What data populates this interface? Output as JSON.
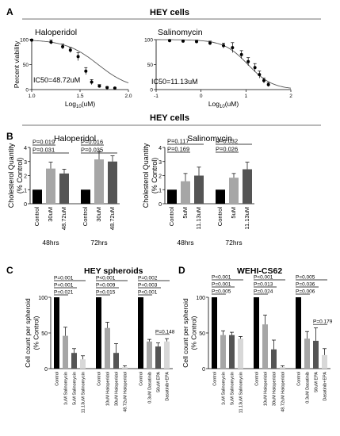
{
  "panel_labels": [
    "A",
    "B",
    "C",
    "D"
  ],
  "section_titles": {
    "a": "HEY cells",
    "b": "HEY cells"
  },
  "colors": {
    "black": "#000000",
    "gray": "#a6a6a6",
    "dark": "#545454",
    "light": "#d8d8d8"
  },
  "chart_data": [
    {
      "id": "A-haloperidol",
      "type": "scatter",
      "title": "Haloperidol",
      "ylabel": "Percent viability",
      "xlabel": "Log10(uM)",
      "xlabel_base": "Log",
      "xlabel_sub": "10",
      "xlabel_tail": "(uM)",
      "xlim": [
        1.0,
        2.0
      ],
      "ylim": [
        0,
        100
      ],
      "xticks": [
        "1.0",
        "1.5",
        "2.0"
      ],
      "yticks": [
        "0",
        "50",
        "100"
      ],
      "annotation": "IC50=48.72uM",
      "ic50": 48.72,
      "x": [
        1.0,
        1.2,
        1.32,
        1.4,
        1.48,
        1.56,
        1.62,
        1.7,
        1.78,
        1.86
      ],
      "y": [
        99,
        95,
        86,
        79,
        66,
        37,
        15,
        7,
        4,
        3
      ],
      "err": [
        2,
        4,
        5,
        5,
        8,
        7,
        5,
        3,
        2,
        1
      ]
    },
    {
      "id": "A-salinomycin",
      "type": "scatter",
      "title": "Salinomycin",
      "ylabel": "Percent viability",
      "xlabel": "Log10(uM)",
      "xlabel_base": "Log",
      "xlabel_sub": "10",
      "xlabel_tail": "(uM)",
      "xlim": [
        -1,
        2
      ],
      "ylim": [
        0,
        100
      ],
      "xticks": [
        "-1",
        "0",
        "1",
        "2"
      ],
      "yticks": [
        "0",
        "50",
        "100"
      ],
      "annotation": "IC50=11.13uM",
      "ic50": 11.13,
      "x": [
        -0.7,
        -0.4,
        -0.1,
        0.2,
        0.5,
        0.7,
        0.9,
        1.05,
        1.2,
        1.3,
        1.4,
        1.5
      ],
      "y": [
        98,
        97,
        96,
        93,
        88,
        84,
        70,
        56,
        44,
        30,
        18,
        10
      ],
      "err": [
        2,
        2,
        3,
        4,
        5,
        10,
        8,
        8,
        8,
        7,
        5,
        4
      ]
    },
    {
      "id": "B-haloperidol",
      "type": "bar",
      "title": "Haloperidol",
      "ylabel": "Cholesterol Quantity",
      "ylabel2": "(% Control)",
      "ylim": [
        0,
        4
      ],
      "yticks": [
        "0",
        "1",
        "2",
        "3",
        "4"
      ],
      "categories": [
        "Control",
        "30uM",
        "48.72uM",
        "Control",
        "30uM",
        "48.72uM"
      ],
      "values": [
        1.0,
        2.5,
        2.15,
        1.0,
        3.15,
        3.0
      ],
      "err": [
        0,
        0.45,
        0.3,
        0,
        0.55,
        0.4
      ],
      "bar_colors": [
        "#000000",
        "#a6a6a6",
        "#545454",
        "#000000",
        "#a6a6a6",
        "#545454"
      ],
      "groups": [
        "48hrs",
        "72hrs"
      ],
      "pvalues": [
        {
          "label": "P=0.019",
          "from": 0,
          "to": 1,
          "level": 1
        },
        {
          "label": "P=0.031",
          "from": 0,
          "to": 2,
          "level": 0
        },
        {
          "label": "P=0.016",
          "from": 3,
          "to": 4,
          "level": 1
        },
        {
          "label": "P=0.035",
          "from": 3,
          "to": 5,
          "level": 0
        }
      ]
    },
    {
      "id": "B-salinomycin",
      "type": "bar",
      "title": "Salinomycin",
      "ylabel": "Cholesterol Quantity",
      "ylabel2": "(% Control)",
      "ylim": [
        0,
        4
      ],
      "yticks": [
        "0",
        "1",
        "2",
        "3",
        "4"
      ],
      "categories": [
        "Control",
        "5uM",
        "11.13uM",
        "Control",
        "5uM",
        "11.13uM"
      ],
      "values": [
        1.0,
        1.6,
        2.0,
        1.0,
        1.85,
        2.45
      ],
      "err": [
        0,
        0.55,
        0.6,
        0,
        0.3,
        0.5
      ],
      "bar_colors": [
        "#000000",
        "#a6a6a6",
        "#545454",
        "#000000",
        "#a6a6a6",
        "#545454"
      ],
      "groups": [
        "48hrs",
        "72hrs"
      ],
      "pvalues": [
        {
          "label": "P=0.117",
          "from": 0,
          "to": 2,
          "level": 1
        },
        {
          "label": "P=0.169",
          "from": 0,
          "to": 1,
          "level": 0
        },
        {
          "label": "P=0.032",
          "from": 3,
          "to": 5,
          "level": 1
        },
        {
          "label": "P=0.026",
          "from": 3,
          "to": 4,
          "level": 0
        }
      ]
    },
    {
      "id": "C",
      "type": "bar",
      "title": "HEY spheroids",
      "ylabel": "Cell count per spheroid",
      "ylabel2": "(% Control)",
      "ylim": [
        0,
        100
      ],
      "yticks": [
        "0",
        "50",
        "100"
      ],
      "categories": [
        "Control",
        "1uM Salinomycin",
        "5uM Salinomycin",
        "11.13uM Salinomycin",
        "Control",
        "10uM Haloperidol",
        "30uM Haloperidol",
        "48.72uM Haloperidol",
        "Control",
        "0.3uM Dasatinib",
        "50uM EPA",
        "Dasatinib+EPA"
      ],
      "values": [
        100,
        46,
        22,
        13,
        100,
        57,
        22,
        2,
        100,
        38,
        31,
        38
      ],
      "err": [
        0,
        12,
        6,
        5,
        0,
        8,
        13,
        2,
        0,
        3,
        5,
        4
      ],
      "bar_colors": [
        "#000000",
        "#a6a6a6",
        "#545454",
        "#d8d8d8",
        "#000000",
        "#a6a6a6",
        "#545454",
        "#d8d8d8",
        "#000000",
        "#a6a6a6",
        "#545454",
        "#d8d8d8"
      ],
      "pvalues": [
        {
          "label": "P=0.001",
          "from": 0,
          "to": 3,
          "level": 2
        },
        {
          "label": "P=0.001",
          "from": 0,
          "to": 2,
          "level": 1
        },
        {
          "label": "P=0.021",
          "from": 0,
          "to": 1,
          "level": 0
        },
        {
          "label": "P<0.001",
          "from": 4,
          "to": 7,
          "level": 2
        },
        {
          "label": "P=0.009",
          "from": 4,
          "to": 6,
          "level": 1
        },
        {
          "label": "P=0.015",
          "from": 4,
          "to": 5,
          "level": 0
        },
        {
          "label": "P=0.002",
          "from": 8,
          "to": 11,
          "level": 2
        },
        {
          "label": "P=0.003",
          "from": 8,
          "to": 10,
          "level": 1
        },
        {
          "label": "P<0.001",
          "from": 8,
          "to": 9,
          "level": 0
        },
        {
          "label": "P=0.148",
          "from": 10,
          "to": 11,
          "level": -1
        }
      ]
    },
    {
      "id": "D",
      "type": "bar",
      "title": "WEHI-CS62",
      "ylabel": "Cell count per spheroid",
      "ylabel2": "(% Control)",
      "ylim": [
        0,
        100
      ],
      "yticks": [
        "0",
        "50",
        "100"
      ],
      "categories": [
        "Control",
        "1uM Salinomycin",
        "5uM Salinomycin",
        "11.13uM Salinomycin",
        "Control",
        "10uM Haloperidol",
        "30uM Haloperidol",
        "48.72uM Haloperidol",
        "Control",
        "0.3uM Dasatinib",
        "50uM EPA",
        "Dasatinib+EPA"
      ],
      "values": [
        100,
        47,
        47,
        42,
        100,
        62,
        27,
        2,
        100,
        42,
        39,
        19
      ],
      "err": [
        0,
        6,
        4,
        3,
        0,
        13,
        13,
        2,
        0,
        10,
        18,
        9
      ],
      "bar_colors": [
        "#000000",
        "#a6a6a6",
        "#545454",
        "#d8d8d8",
        "#000000",
        "#a6a6a6",
        "#545454",
        "#d8d8d8",
        "#000000",
        "#a6a6a6",
        "#545454",
        "#d8d8d8"
      ],
      "pvalues": [
        {
          "label": "P<0.001",
          "from": 0,
          "to": 3,
          "level": 2
        },
        {
          "label": "P=0.001",
          "from": 0,
          "to": 2,
          "level": 1
        },
        {
          "label": "P=0.005",
          "from": 0,
          "to": 1,
          "level": 0
        },
        {
          "label": "P<0.001",
          "from": 4,
          "to": 7,
          "level": 2
        },
        {
          "label": "P=0.013",
          "from": 4,
          "to": 6,
          "level": 1
        },
        {
          "label": "P=0.024",
          "from": 4,
          "to": 5,
          "level": 0
        },
        {
          "label": "P=0.005",
          "from": 8,
          "to": 11,
          "level": 2
        },
        {
          "label": "P=0.036",
          "from": 8,
          "to": 10,
          "level": 1
        },
        {
          "label": "P=0.006",
          "from": 8,
          "to": 9,
          "level": 0
        },
        {
          "label": "P=0.179",
          "from": 10,
          "to": 11,
          "level": -1
        }
      ]
    }
  ]
}
